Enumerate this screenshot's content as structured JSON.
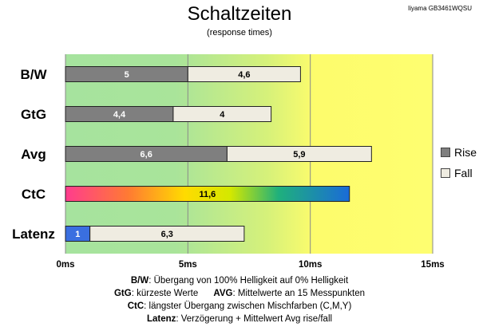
{
  "header": {
    "title": "Schaltzeiten",
    "subtitle": "(response times)",
    "model": "Iiyama GB3461WQSU"
  },
  "legend": {
    "rise": "Rise",
    "fall": "Fall"
  },
  "notes": [
    {
      "k1": "B/W",
      "t1": ":  Übergang von 100% Helligkeit auf 0% Helligkeit",
      "k2": "",
      "t2": ""
    },
    {
      "k1": "GtG",
      "t1": ": kürzeste  Werte",
      "k2": "AVG",
      "t2": ": Mittelwerte  an 15 Messpunkten"
    },
    {
      "k1": "CtC",
      "t1": ": längster Übergang  zwischen Mischfarben  (C,M,Y)",
      "k2": "",
      "t2": ""
    },
    {
      "k1": "Latenz",
      "t1": ": Verzögerung  + Mittelwert  Avg rise/fall",
      "k2": "",
      "t2": ""
    }
  ],
  "colors": {
    "rise": "#7f7f7f",
    "fall": "#efece1",
    "latency_rise": "#3a6fe0",
    "zone_green": "#a6e39e",
    "zone_yellow": "#fdfc6c"
  },
  "chart_data": {
    "type": "bar",
    "orientation": "horizontal",
    "stacked": true,
    "categories": [
      "B/W",
      "GtG",
      "Avg",
      "CtC",
      "Latenz"
    ],
    "series": [
      {
        "name": "Rise",
        "values": [
          5,
          4.4,
          6.6,
          11.6,
          1
        ]
      },
      {
        "name": "Fall",
        "values": [
          4.6,
          4,
          5.9,
          null,
          6.3
        ]
      }
    ],
    "labels": [
      [
        "5",
        "4,6"
      ],
      [
        "4,4",
        "4"
      ],
      [
        "6,6",
        "5,9"
      ],
      [
        "11,6",
        null
      ],
      [
        "1",
        "6,3"
      ]
    ],
    "xlim": [
      0,
      15
    ],
    "xticks": [
      "0ms",
      "5ms",
      "10ms",
      "15ms"
    ],
    "grid": true,
    "legend_position": "right"
  }
}
